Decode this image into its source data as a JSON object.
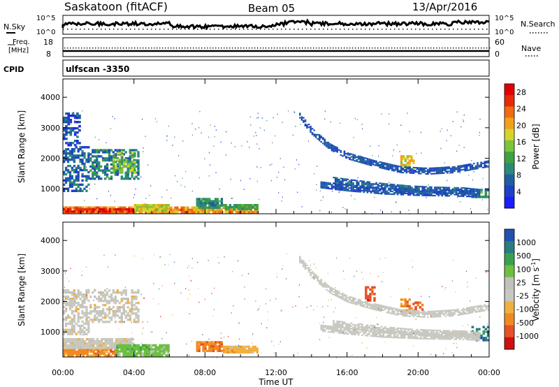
{
  "header": {
    "site": "Saskatoon (fitACF)",
    "beam": "Beam 05",
    "date": "13/Apr/2016"
  },
  "panels": {
    "nsky_label": "N.Sky",
    "nsearch_label": "N.Search",
    "freq_label_1": "Freq.",
    "freq_label_2": "[MHz]",
    "nave_label": "Nave",
    "cpid_label": "CPID",
    "cpid_value": "ulfscan -3350",
    "nsky_ticks": [
      "10^5",
      "10^0"
    ],
    "nsearch_ticks": [
      "10^5",
      "10^0"
    ],
    "freq_ticks": [
      "18",
      "8"
    ],
    "nave_ticks": [
      "60",
      "0"
    ]
  },
  "colors": {
    "power_scale": [
      "#1c1cff",
      "#1e3fc8",
      "#1f5fa0",
      "#2a8a78",
      "#3fa044",
      "#7cc43a",
      "#d8d32a",
      "#f0a21c",
      "#f06b12",
      "#e82a0a",
      "#e00000"
    ],
    "velocity_scale": [
      "#d01010",
      "#e8502a",
      "#f08a20",
      "#f0b040",
      "#c8c8c0",
      "#c0c0bc",
      "#6cc040",
      "#3aa050",
      "#2a7c80",
      "#2050b0"
    ]
  },
  "chart_data": [
    {
      "type": "heatmap",
      "name": "power",
      "ylabel": "Slant Range [km]",
      "yticks": [
        1000,
        2000,
        3000,
        4000
      ],
      "ylim": [
        180,
        4600
      ],
      "xlim": [
        0,
        24
      ],
      "xticks": [
        "00:00",
        "04:00",
        "08:00",
        "12:00",
        "16:00",
        "20:00",
        "00:00"
      ],
      "colorbar": {
        "label": "Power [dB]",
        "ticks": [
          "4",
          "8",
          "12",
          "16",
          "20",
          "24",
          "28"
        ],
        "range": [
          0,
          30
        ]
      },
      "regions": [
        {
          "kind": "band",
          "t0": 0.0,
          "t1": 11.0,
          "r0": 200,
          "r1": 420,
          "v": 22
        },
        {
          "kind": "band",
          "t0": 0.0,
          "t1": 4.0,
          "r0": 220,
          "r1": 360,
          "v": 28
        },
        {
          "kind": "band",
          "t0": 4.0,
          "t1": 6.0,
          "r0": 250,
          "r1": 500,
          "v": 18
        },
        {
          "kind": "band",
          "t0": 7.5,
          "t1": 9.0,
          "r0": 350,
          "r1": 700,
          "v": 10
        },
        {
          "kind": "band",
          "t0": 9.0,
          "t1": 11.0,
          "r0": 300,
          "r1": 500,
          "v": 12
        },
        {
          "kind": "blob",
          "t0": 0.0,
          "t1": 1.5,
          "r0": 900,
          "r1": 2400,
          "v": 6
        },
        {
          "kind": "blob",
          "t0": 1.5,
          "t1": 4.3,
          "r0": 1300,
          "r1": 2300,
          "v": 8
        },
        {
          "kind": "blob",
          "t0": 2.8,
          "t1": 4.1,
          "r0": 1500,
          "r1": 2200,
          "v": 14
        },
        {
          "kind": "blob",
          "t0": 0.0,
          "t1": 1.0,
          "r0": 2400,
          "r1": 3500,
          "v": 4
        },
        {
          "kind": "blob",
          "t0": 19.0,
          "t1": 19.8,
          "r0": 1600,
          "r1": 2100,
          "v": 18
        },
        {
          "kind": "blob",
          "t0": 23.0,
          "t1": 24.0,
          "r0": 700,
          "r1": 1000,
          "v": 10
        }
      ],
      "arcs": [
        {
          "x": [
            13.3,
            14.0,
            15.0,
            16.0,
            17.5,
            19.0,
            20.5,
            22.0,
            23.0,
            24.0
          ],
          "r": [
            3400,
            2900,
            2400,
            2100,
            1850,
            1650,
            1600,
            1650,
            1750,
            1850
          ],
          "v": 5
        },
        {
          "x": [
            15.2,
            16.5,
            18.0,
            19.5,
            21.0,
            22.5,
            23.5
          ],
          "r": [
            1300,
            1200,
            1100,
            1020,
            980,
            960,
            900
          ],
          "v": 6
        },
        {
          "x": [
            14.5,
            16.0,
            18.0,
            20.0,
            22.0,
            23.5
          ],
          "r": [
            1150,
            1050,
            950,
            900,
            880,
            850
          ],
          "v": 5
        }
      ]
    },
    {
      "type": "heatmap",
      "name": "velocity",
      "ylabel": "Slant Range [km]",
      "yticks": [
        1000,
        2000,
        3000,
        4000
      ],
      "ylim": [
        180,
        4600
      ],
      "xlim": [
        0,
        24
      ],
      "xticks": [
        "00:00",
        "04:00",
        "08:00",
        "12:00",
        "16:00",
        "20:00",
        "00:00"
      ],
      "xlabel": "Time UT",
      "colorbar": {
        "label": "Velocity [m s",
        "label_sup": "-1",
        "label_end": "]",
        "ticks": [
          "1000",
          "500",
          "100",
          "25",
          "-25",
          "-100",
          "-500",
          "-1000"
        ]
      },
      "regions": [
        {
          "kind": "band",
          "t0": 0.0,
          "t1": 3.0,
          "r0": 200,
          "r1": 450,
          "c": 2
        },
        {
          "kind": "band",
          "t0": 0.0,
          "t1": 4.0,
          "r0": 450,
          "r1": 800,
          "c": 4
        },
        {
          "kind": "band",
          "t0": 3.0,
          "t1": 6.0,
          "r0": 200,
          "r1": 600,
          "c": 6
        },
        {
          "kind": "band",
          "t0": 7.5,
          "t1": 9.0,
          "r0": 350,
          "r1": 700,
          "c": 2
        },
        {
          "kind": "band",
          "t0": 9.0,
          "t1": 11.0,
          "r0": 300,
          "r1": 550,
          "c": 3
        },
        {
          "kind": "blob",
          "t0": 0.0,
          "t1": 1.5,
          "r0": 900,
          "r1": 2400,
          "c": 4
        },
        {
          "kind": "blob",
          "t0": 1.5,
          "t1": 4.3,
          "r0": 1300,
          "r1": 2400,
          "c": 4
        },
        {
          "kind": "blob",
          "t0": 17.0,
          "t1": 17.6,
          "r0": 2000,
          "r1": 2500,
          "c": 1
        },
        {
          "kind": "blob",
          "t0": 19.0,
          "t1": 19.8,
          "r0": 1600,
          "r1": 2100,
          "c": 2
        },
        {
          "kind": "blob",
          "t0": 19.8,
          "t1": 20.3,
          "r0": 1700,
          "r1": 2000,
          "c": 1
        },
        {
          "kind": "blob",
          "t0": 23.0,
          "t1": 24.0,
          "r0": 700,
          "r1": 1200,
          "c": 8
        }
      ],
      "arcs": [
        {
          "x": [
            13.3,
            14.0,
            15.0,
            16.0,
            17.5,
            19.0,
            20.5,
            22.0,
            23.0,
            24.0
          ],
          "r": [
            3400,
            2900,
            2400,
            2100,
            1850,
            1650,
            1600,
            1650,
            1750,
            1850
          ],
          "c": 4
        },
        {
          "x": [
            15.2,
            16.5,
            18.0,
            19.5,
            21.0,
            22.5,
            23.5
          ],
          "r": [
            1300,
            1200,
            1100,
            1020,
            980,
            960,
            900
          ],
          "c": 4
        },
        {
          "x": [
            14.5,
            16.0,
            18.0,
            20.0,
            22.0,
            23.5
          ],
          "r": [
            1150,
            1050,
            950,
            900,
            880,
            850
          ],
          "c": 4
        }
      ]
    }
  ]
}
